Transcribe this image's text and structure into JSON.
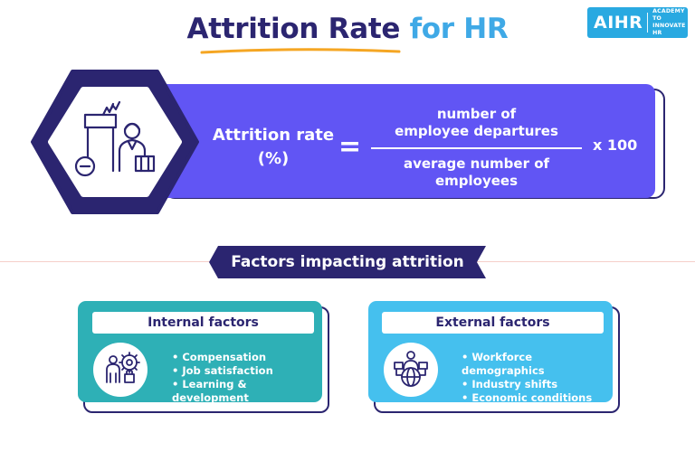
{
  "header": {
    "title_main": "Attrition Rate",
    "title_accent": "for HR"
  },
  "logo": {
    "mark": "AIHR",
    "tagline_line1": "ACADEMY TO",
    "tagline_line2": "INNOVATE HR"
  },
  "formula": {
    "lhs_line1": "Attrition rate",
    "lhs_line2": "(%)",
    "equals": "=",
    "numerator_line1": "number of",
    "numerator_line2": "employee departures",
    "denominator_line1": "average number of",
    "denominator_line2": "employees",
    "multiplier": "x 100"
  },
  "section": {
    "banner": "Factors impacting attrition"
  },
  "internal": {
    "heading": "Internal factors",
    "items": [
      "Compensation",
      "Job satisfaction",
      "Learning & development"
    ]
  },
  "external": {
    "heading": "External factors",
    "items": [
      "Workforce demographics",
      "Industry shifts",
      "Economic conditions"
    ]
  },
  "colors": {
    "navy": "#2b2570",
    "title_accent": "#3fa9e6",
    "underline": "#f5a623",
    "formula_panel": "#6155f4",
    "internal_card": "#2eb0b6",
    "external_card": "#45c0ee",
    "logo_bg": "#29a9e1"
  }
}
